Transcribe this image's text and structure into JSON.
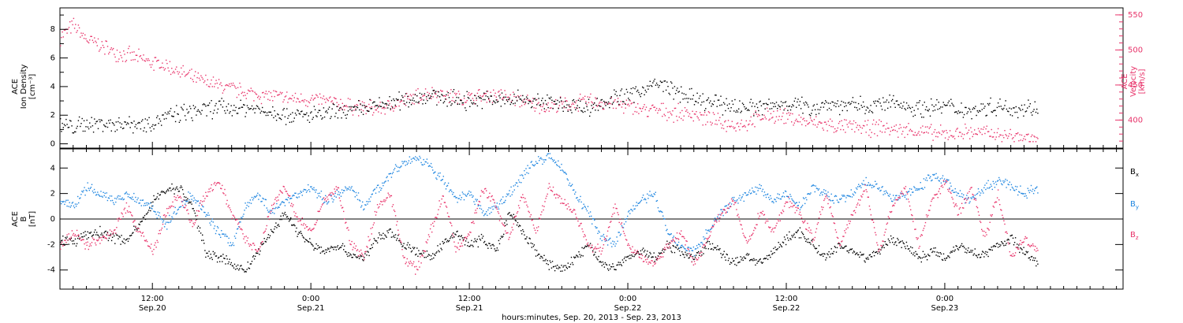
{
  "colors": {
    "black": "#000000",
    "pink": "#e8336a",
    "blue": "#1f86e0",
    "axis": "#000000"
  },
  "time_axis": {
    "range_hours": [
      0,
      80.5
    ],
    "start_datetime": "2013-09-20 05:00",
    "tick_step_hours": 1,
    "label_ticks": [
      {
        "hours": 7,
        "time": "12:00",
        "day": "Sep.20"
      },
      {
        "hours": 19,
        "time": "0:00",
        "day": "Sep.21"
      },
      {
        "hours": 31,
        "time": "12:00",
        "day": "Sep.21"
      },
      {
        "hours": 43,
        "time": "0:00",
        "day": "Sep.22"
      },
      {
        "hours": 55,
        "time": "12:00",
        "day": "Sep.22"
      },
      {
        "hours": 67,
        "time": "0:00",
        "day": "Sep.23"
      }
    ],
    "xlabel": "hours:minutes, Sep. 20, 2013 - Sep. 23, 2013"
  },
  "chart_data": [
    {
      "type": "scatter",
      "panel": "top",
      "ylabel_left": [
        "ACE",
        "Ion Density",
        "[cm⁻³]"
      ],
      "ylabel_right": [
        "ACE",
        "Velocity",
        "[km/s]"
      ],
      "ylim_left": [
        -0.3,
        9.5
      ],
      "yticks_left": [
        0,
        2,
        4,
        6,
        8
      ],
      "ylim_right": [
        360,
        560
      ],
      "yticks_right": [
        400,
        450,
        500,
        550
      ],
      "series": [
        {
          "axis": "left",
          "color": "black",
          "x": [
            0,
            1,
            2,
            3,
            4,
            5,
            6,
            7,
            8,
            9,
            10,
            11,
            12,
            13,
            14,
            15,
            16,
            17,
            18,
            19,
            20,
            21,
            22,
            23,
            24,
            25,
            26,
            27,
            28,
            29,
            30,
            31,
            32,
            33,
            34,
            35,
            36,
            37,
            38,
            39,
            40,
            41,
            42,
            43,
            44,
            45,
            46,
            47,
            48,
            49,
            50,
            51,
            52,
            53,
            54,
            55,
            56,
            57,
            58,
            59,
            60,
            61,
            62,
            63,
            64,
            65,
            66,
            67,
            68,
            69,
            70,
            71,
            72,
            73,
            74
          ],
          "y": [
            1.3,
            1.2,
            1.4,
            1.5,
            1.4,
            1.5,
            1.4,
            1.6,
            1.9,
            2.1,
            2.3,
            2.4,
            2.6,
            2.5,
            2.6,
            2.4,
            2.3,
            2.1,
            2.0,
            2.0,
            2.1,
            2.2,
            2.3,
            2.5,
            2.7,
            2.9,
            3.1,
            3.3,
            3.4,
            3.3,
            3.1,
            3.0,
            3.2,
            3.0,
            3.1,
            3.2,
            3.0,
            2.9,
            2.8,
            2.7,
            2.6,
            2.9,
            3.2,
            3.4,
            3.8,
            4.2,
            4.0,
            3.5,
            3.1,
            2.9,
            2.8,
            2.7,
            2.6,
            2.6,
            2.7,
            2.9,
            2.7,
            2.6,
            2.8,
            2.8,
            2.7,
            2.6,
            2.8,
            2.9,
            2.7,
            2.5,
            2.6,
            2.7,
            2.5,
            2.4,
            2.6,
            2.7,
            2.5,
            2.6,
            2.4
          ]
        },
        {
          "axis": "right",
          "color": "pink",
          "x": [
            0,
            1,
            2,
            3,
            4,
            5,
            6,
            7,
            8,
            9,
            10,
            11,
            12,
            13,
            14,
            15,
            16,
            17,
            18,
            19,
            20,
            21,
            22,
            23,
            24,
            25,
            26,
            27,
            28,
            29,
            30,
            31,
            32,
            33,
            34,
            35,
            36,
            37,
            38,
            39,
            40,
            41,
            42,
            43,
            44,
            45,
            46,
            47,
            48,
            49,
            50,
            51,
            52,
            53,
            54,
            55,
            56,
            57,
            58,
            59,
            60,
            61,
            62,
            63,
            64,
            65,
            66,
            67,
            68,
            69,
            70,
            71,
            72,
            73,
            74
          ],
          "y": [
            520,
            535,
            515,
            508,
            498,
            494,
            488,
            482,
            478,
            470,
            460,
            455,
            450,
            445,
            440,
            437,
            435,
            432,
            430,
            430,
            428,
            424,
            420,
            418,
            416,
            420,
            428,
            434,
            440,
            438,
            432,
            432,
            435,
            438,
            432,
            428,
            422,
            420,
            422,
            424,
            428,
            426,
            424,
            420,
            416,
            415,
            412,
            410,
            410,
            402,
            396,
            394,
            396,
            404,
            408,
            405,
            400,
            396,
            394,
            390,
            392,
            388,
            390,
            388,
            386,
            385,
            382,
            380,
            383,
            384,
            382,
            380,
            378,
            376,
            374
          ]
        }
      ]
    },
    {
      "type": "scatter",
      "panel": "bottom",
      "ylabel_left": [
        "ACE",
        "B",
        "[nT]"
      ],
      "ylim": [
        -5.5,
        5.5
      ],
      "yticks": [
        -4,
        -2,
        0,
        2,
        4
      ],
      "zero_line": true,
      "series": [
        {
          "name": "Bx",
          "color": "black",
          "x": [
            0,
            1,
            2,
            3,
            4,
            5,
            6,
            7,
            8,
            9,
            10,
            11,
            12,
            13,
            14,
            15,
            16,
            17,
            18,
            19,
            20,
            21,
            22,
            23,
            24,
            25,
            26,
            27,
            28,
            29,
            30,
            31,
            32,
            33,
            34,
            35,
            36,
            37,
            38,
            39,
            40,
            41,
            42,
            43,
            44,
            45,
            46,
            47,
            48,
            49,
            50,
            51,
            52,
            53,
            54,
            55,
            56,
            57,
            58,
            59,
            60,
            61,
            62,
            63,
            64,
            65,
            66,
            67,
            68,
            69,
            70,
            71,
            72,
            73,
            74
          ],
          "y": [
            -1.5,
            -1.8,
            -1.2,
            -1.0,
            -1.4,
            -1.6,
            -0.5,
            1.5,
            2.3,
            2.5,
            1.0,
            -2.5,
            -3.0,
            -3.5,
            -4.0,
            -2.5,
            -1.0,
            0.5,
            -1.0,
            -2.0,
            -2.5,
            -2.0,
            -2.8,
            -3.0,
            -1.5,
            -1.0,
            -2.0,
            -2.5,
            -3.0,
            -2.0,
            -1.0,
            -2.0,
            -1.5,
            -2.5,
            0.5,
            -1.0,
            -2.5,
            -3.5,
            -4.0,
            -3.0,
            -2.0,
            -3.5,
            -3.8,
            -3.0,
            -2.5,
            -3.0,
            -2.0,
            -2.5,
            -3.0,
            -2.0,
            -2.5,
            -3.5,
            -2.8,
            -3.5,
            -2.5,
            -1.5,
            -1.0,
            -2.0,
            -3.0,
            -2.0,
            -2.5,
            -3.0,
            -2.5,
            -1.5,
            -2.0,
            -3.0,
            -2.5,
            -3.0,
            -2.0,
            -2.5,
            -2.8,
            -2.0,
            -1.5,
            -2.5,
            -3.5
          ]
        },
        {
          "name": "By",
          "color": "blue",
          "x": [
            0,
            1,
            2,
            3,
            4,
            5,
            6,
            7,
            8,
            9,
            10,
            11,
            12,
            13,
            14,
            15,
            16,
            17,
            18,
            19,
            20,
            21,
            22,
            23,
            24,
            25,
            26,
            27,
            28,
            29,
            30,
            31,
            32,
            33,
            34,
            35,
            36,
            37,
            38,
            39,
            40,
            41,
            42,
            43,
            44,
            45,
            46,
            47,
            48,
            49,
            50,
            51,
            52,
            53,
            54,
            55,
            56,
            57,
            58,
            59,
            60,
            61,
            62,
            63,
            64,
            65,
            66,
            67,
            68,
            69,
            70,
            71,
            72,
            73,
            74
          ],
          "y": [
            1.5,
            1.0,
            2.5,
            2.0,
            1.5,
            2.0,
            1.5,
            1.0,
            -0.5,
            1.0,
            2.0,
            0.5,
            -1.0,
            -2.0,
            1.0,
            2.0,
            0.5,
            1.5,
            2.0,
            2.5,
            1.5,
            2.0,
            2.5,
            1.0,
            2.5,
            3.5,
            4.5,
            4.8,
            4.2,
            3.0,
            1.5,
            2.0,
            0.5,
            1.0,
            2.0,
            3.5,
            4.5,
            5.0,
            4.0,
            2.0,
            0.5,
            -1.5,
            -2.0,
            0.5,
            1.5,
            2.0,
            -1.0,
            -2.0,
            -2.5,
            -1.0,
            0.5,
            1.5,
            2.0,
            2.5,
            1.5,
            2.0,
            1.0,
            2.5,
            2.0,
            1.5,
            2.0,
            3.0,
            2.5,
            1.5,
            2.0,
            2.5,
            3.5,
            3.0,
            2.0,
            1.5,
            2.5,
            3.0,
            2.5,
            2.0,
            2.5
          ]
        },
        {
          "name": "Bz",
          "color": "pink",
          "x": [
            0,
            1,
            2,
            3,
            4,
            5,
            6,
            7,
            8,
            9,
            10,
            11,
            12,
            13,
            14,
            15,
            16,
            17,
            18,
            19,
            20,
            21,
            22,
            23,
            24,
            25,
            26,
            27,
            28,
            29,
            30,
            31,
            32,
            33,
            34,
            35,
            36,
            37,
            38,
            39,
            40,
            41,
            42,
            43,
            44,
            45,
            46,
            47,
            48,
            49,
            50,
            51,
            52,
            53,
            54,
            55,
            56,
            57,
            58,
            59,
            60,
            61,
            62,
            63,
            64,
            65,
            66,
            67,
            68,
            69,
            70,
            71,
            72,
            73,
            74
          ],
          "y": [
            -2.0,
            -1.0,
            -2.0,
            -1.5,
            -1.0,
            1.0,
            -1.0,
            -2.5,
            0.5,
            2.0,
            -0.5,
            2.0,
            3.0,
            0.5,
            -1.5,
            -2.5,
            1.0,
            2.5,
            0.0,
            -1.0,
            1.5,
            2.5,
            -2.0,
            -3.0,
            1.0,
            2.0,
            -3.0,
            -4.0,
            -1.0,
            2.0,
            -2.5,
            -1.0,
            2.5,
            1.0,
            -1.5,
            2.0,
            -1.0,
            2.5,
            1.5,
            0.5,
            -2.0,
            -2.5,
            1.0,
            -2.0,
            -3.0,
            -3.5,
            -2.0,
            -1.0,
            -3.5,
            -1.5,
            0.5,
            1.5,
            -2.0,
            0.5,
            -1.0,
            1.5,
            0.5,
            -1.5,
            2.0,
            -2.0,
            0.5,
            2.5,
            -2.5,
            1.0,
            2.5,
            -2.0,
            1.5,
            3.0,
            0.5,
            2.5,
            -1.5,
            2.0,
            -3.0,
            -1.5,
            -2.5
          ]
        }
      ],
      "legend": [
        {
          "label": "B",
          "sub": "x",
          "color": "black"
        },
        {
          "label": "B",
          "sub": "y",
          "color": "blue"
        },
        {
          "label": "B",
          "sub": "z",
          "color": "pink"
        }
      ]
    }
  ]
}
